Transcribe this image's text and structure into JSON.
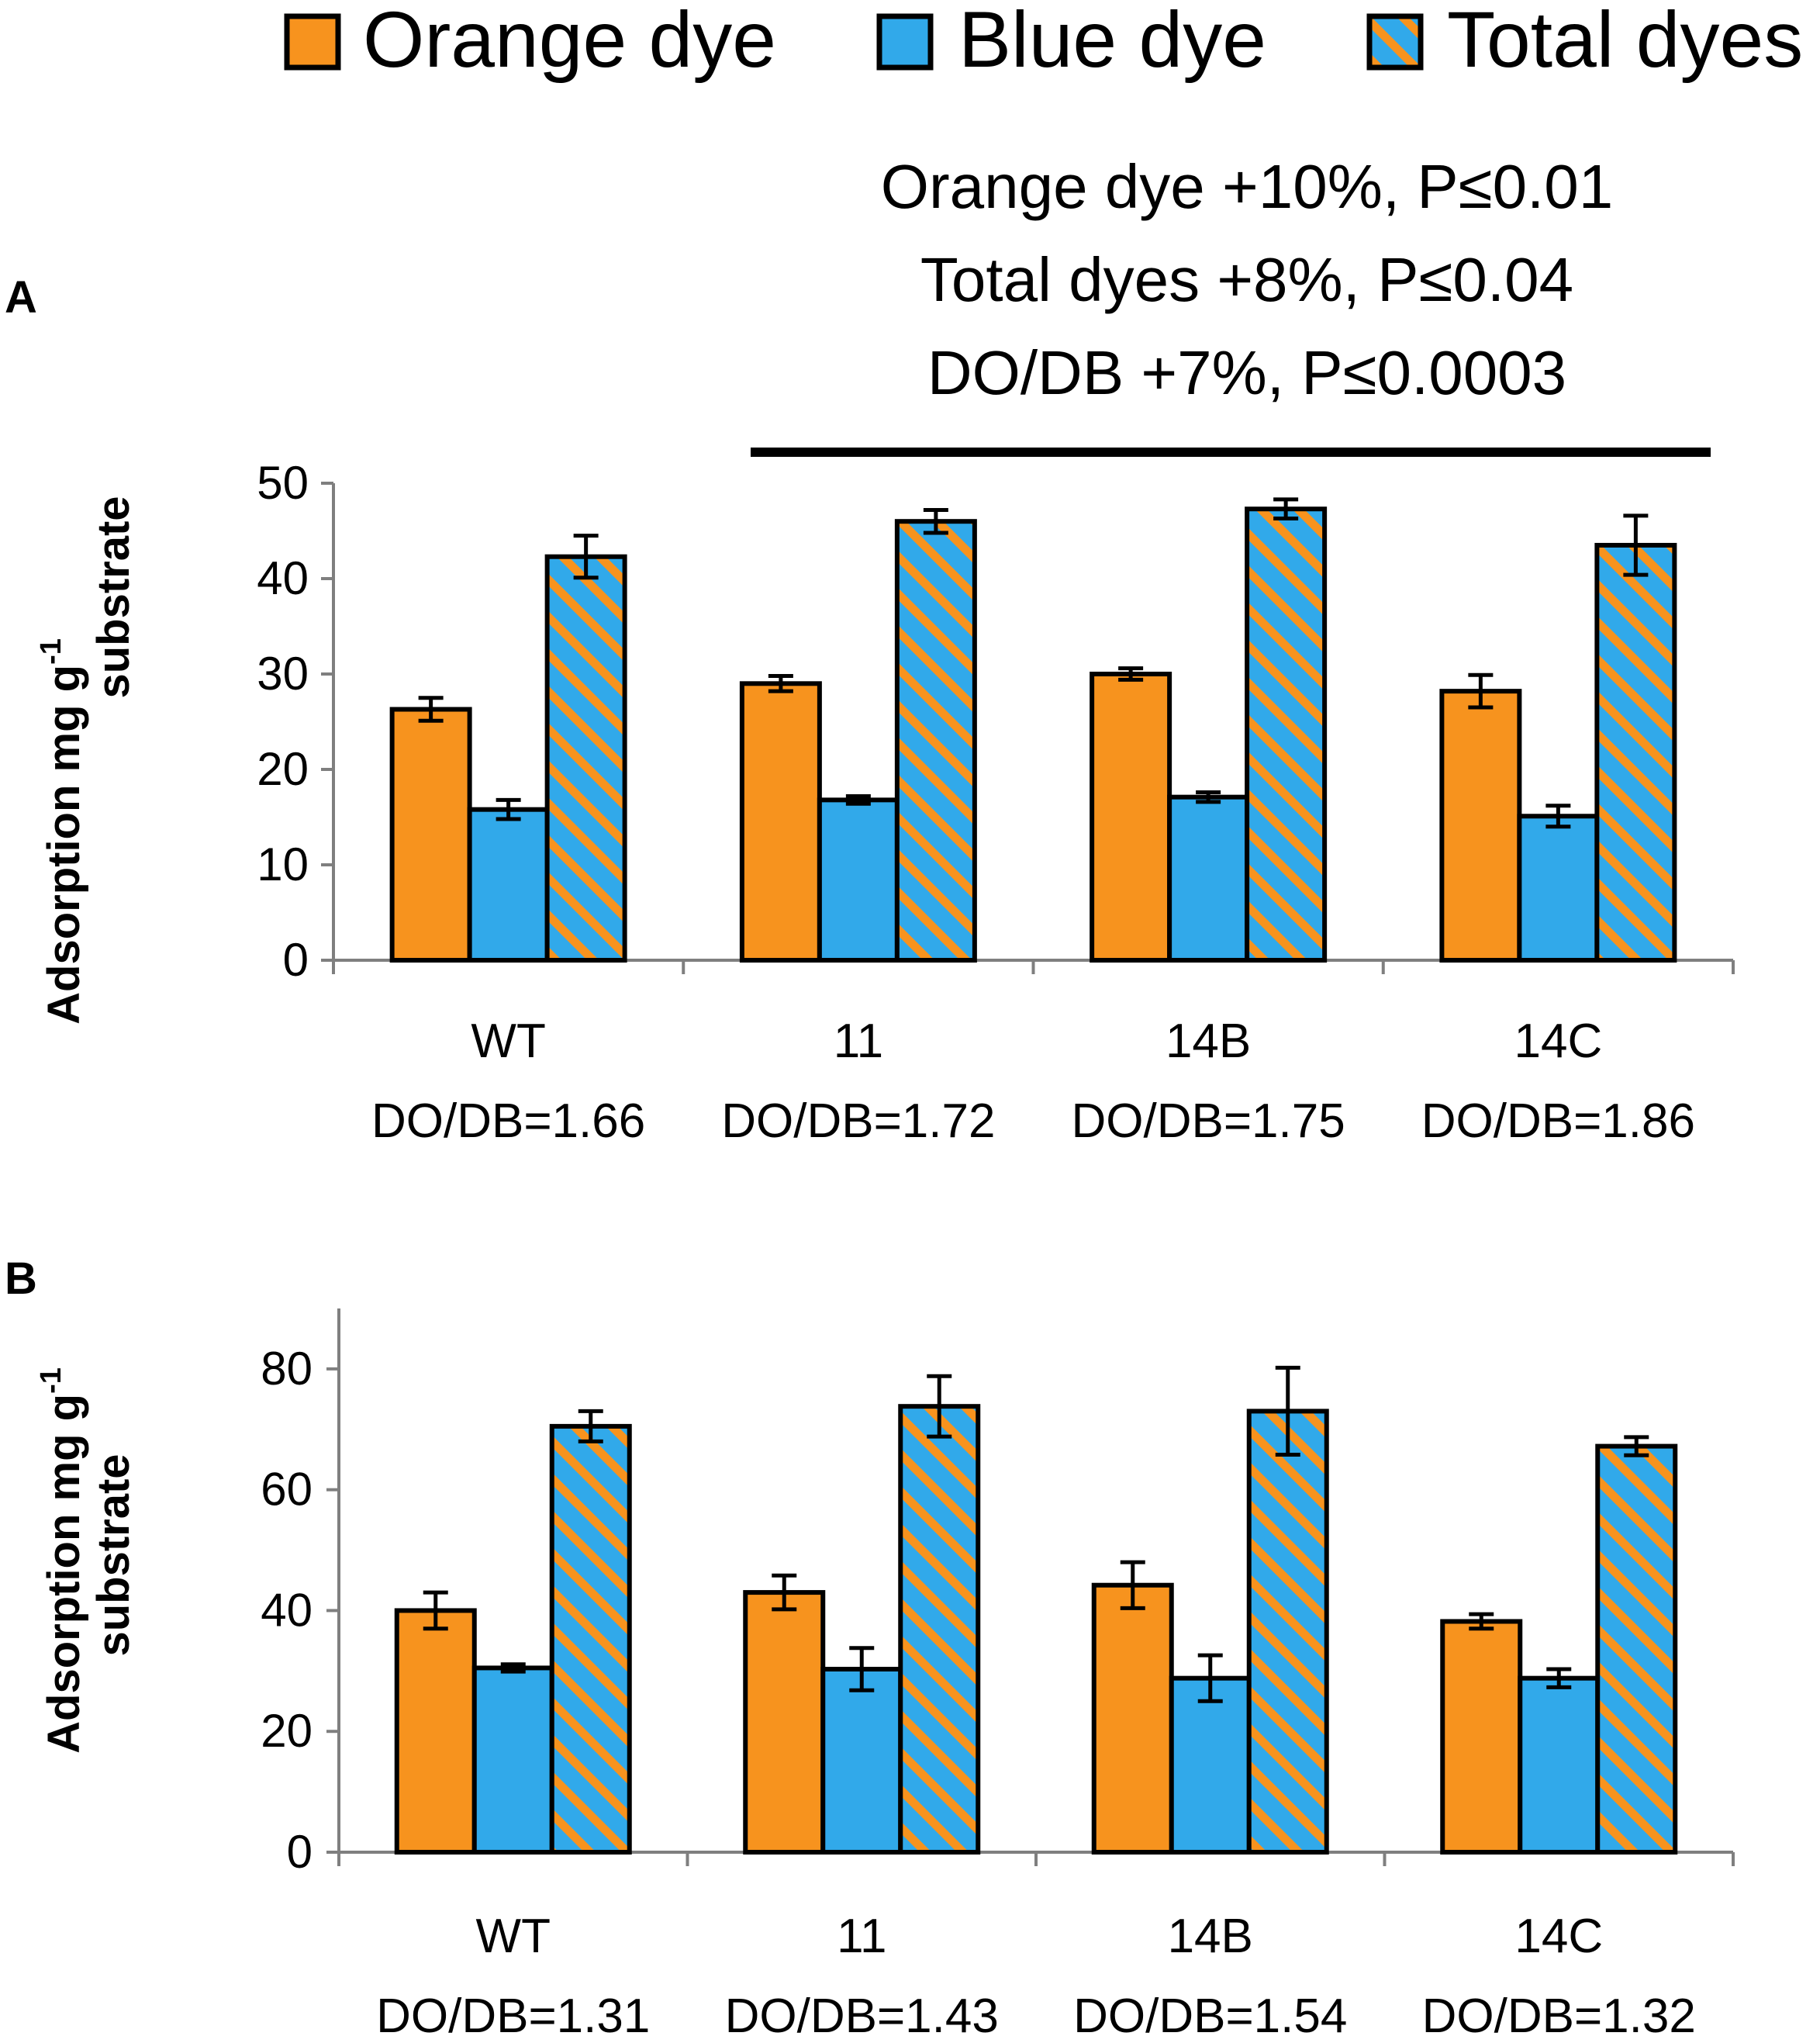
{
  "colors": {
    "orange": "#F7931E",
    "blue": "#31A9EA",
    "stripe_orange": "#F7931E",
    "axis": "#7f7f7f",
    "outline": "#000000"
  },
  "legend": {
    "items": [
      {
        "label": "Orange dye",
        "fill": "orange"
      },
      {
        "label": "Blue dye",
        "fill": "blue"
      },
      {
        "label": "Total dyes",
        "fill": "hatched"
      }
    ]
  },
  "chart_data": [
    {
      "panel": "A",
      "type": "bar",
      "ylabel_line1": "Adsorption mg g",
      "ylabel_sup": "-1",
      "ylabel_line2": "substrate",
      "ylim": [
        0,
        50
      ],
      "yticks": [
        0,
        10,
        20,
        30,
        40,
        50
      ],
      "categories": [
        "WT",
        "11",
        "14B",
        "14C"
      ],
      "category_sublabels": [
        "DO/DB=1.66",
        "DO/DB=1.72",
        "DO/DB=1.75",
        "DO/DB=1.86"
      ],
      "series": [
        {
          "name": "Orange dye",
          "values": [
            26.3,
            29.0,
            30.0,
            28.2
          ],
          "errors": [
            1.2,
            0.8,
            0.6,
            1.7
          ]
        },
        {
          "name": "Blue dye",
          "values": [
            15.8,
            16.8,
            17.1,
            15.1
          ],
          "errors": [
            1.0,
            0.4,
            0.5,
            1.1
          ]
        },
        {
          "name": "Total dyes",
          "values": [
            42.3,
            46.0,
            47.3,
            43.5
          ],
          "errors": [
            2.2,
            1.2,
            1.0,
            3.1
          ]
        }
      ],
      "annotation": [
        "Orange dye +10%, P≤0.01",
        "Total dyes +8%, P≤0.04",
        "DO/DB +7%, P≤0.0003"
      ]
    },
    {
      "panel": "B",
      "type": "bar",
      "ylabel_line1": "Adsorption mg g",
      "ylabel_sup": "-1",
      "ylabel_line2": "substrate",
      "ylim": [
        0,
        90
      ],
      "yticks": [
        0,
        20,
        40,
        60,
        80
      ],
      "categories": [
        "WT",
        "11",
        "14B",
        "14C"
      ],
      "category_sublabels": [
        "DO/DB=1.31",
        "DO/DB=1.43",
        "DO/DB=1.54",
        "DO/DB=1.32"
      ],
      "series": [
        {
          "name": "Orange dye",
          "values": [
            40.0,
            43.0,
            44.2,
            38.2
          ],
          "errors": [
            3.0,
            2.8,
            3.8,
            1.2
          ]
        },
        {
          "name": "Blue dye",
          "values": [
            30.5,
            30.3,
            28.8,
            28.8
          ],
          "errors": [
            0.6,
            3.5,
            3.8,
            1.5
          ]
        },
        {
          "name": "Total dyes",
          "values": [
            70.5,
            73.8,
            73.0,
            67.2
          ],
          "errors": [
            2.5,
            5.0,
            7.2,
            1.5
          ]
        }
      ]
    }
  ]
}
